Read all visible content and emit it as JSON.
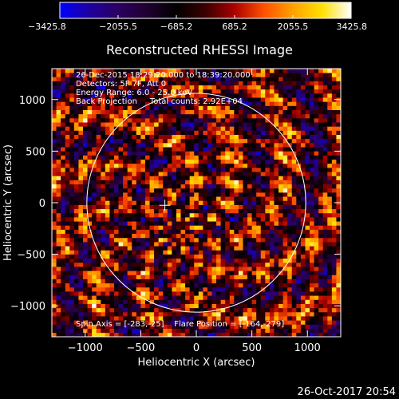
{
  "chart_data": {
    "type": "heatmap",
    "title": "Reconstructed RHESSI Image",
    "xlabel": "Heliocentric X (arcsec)",
    "ylabel": "Heliocentric Y (arcsec)",
    "xlim": [
      -1300,
      1300
    ],
    "ylim": [
      -1300,
      1300
    ],
    "x_ticks": [
      -1000,
      -500,
      0,
      500,
      1000
    ],
    "x_tick_labels": [
      "−1000",
      "−500",
      "0",
      "500",
      "1000"
    ],
    "y_ticks": [
      1000,
      500,
      0,
      -500,
      -1000
    ],
    "y_tick_labels": [
      "1000",
      "500",
      "0",
      "−500",
      "−1000"
    ],
    "colorbar": {
      "min": -3425.8,
      "max": 3425.8,
      "tick_values": [
        -3425.8,
        -2055.5,
        -685.2,
        685.2,
        2055.5,
        3425.8
      ],
      "tick_labels": [
        "−3425.8",
        "−2055.5",
        "−685.2",
        "685.2",
        "2055.5",
        "3425.8"
      ],
      "colormap": [
        "#0000ff",
        "#1e00a0",
        "#2a0060",
        "#200030",
        "#000000",
        "#3c0000",
        "#aa0000",
        "#ff5000",
        "#ffa000",
        "#ffe000",
        "#ffffff"
      ]
    },
    "annotations": [
      "26-Dec-2015 18:29:20.000 to 18:39:20.000",
      "Detectors: 5F 7F, Att 0",
      "Energy Range: 6.0 - 25.0 keV",
      "Back Projection     Total counts: 2.92E+04"
    ],
    "bottom_annotation": "Spin Axis = [-283,-25]    Flare Position = [-164,-279]",
    "solar_limb": {
      "center": [
        0,
        0
      ],
      "radius": 985
    },
    "markers": [
      {
        "symbol": "+",
        "x": -283,
        "y": -25
      }
    ],
    "grid": false
  },
  "footer": {
    "timestamp": "26-Oct-2017 20:54"
  }
}
